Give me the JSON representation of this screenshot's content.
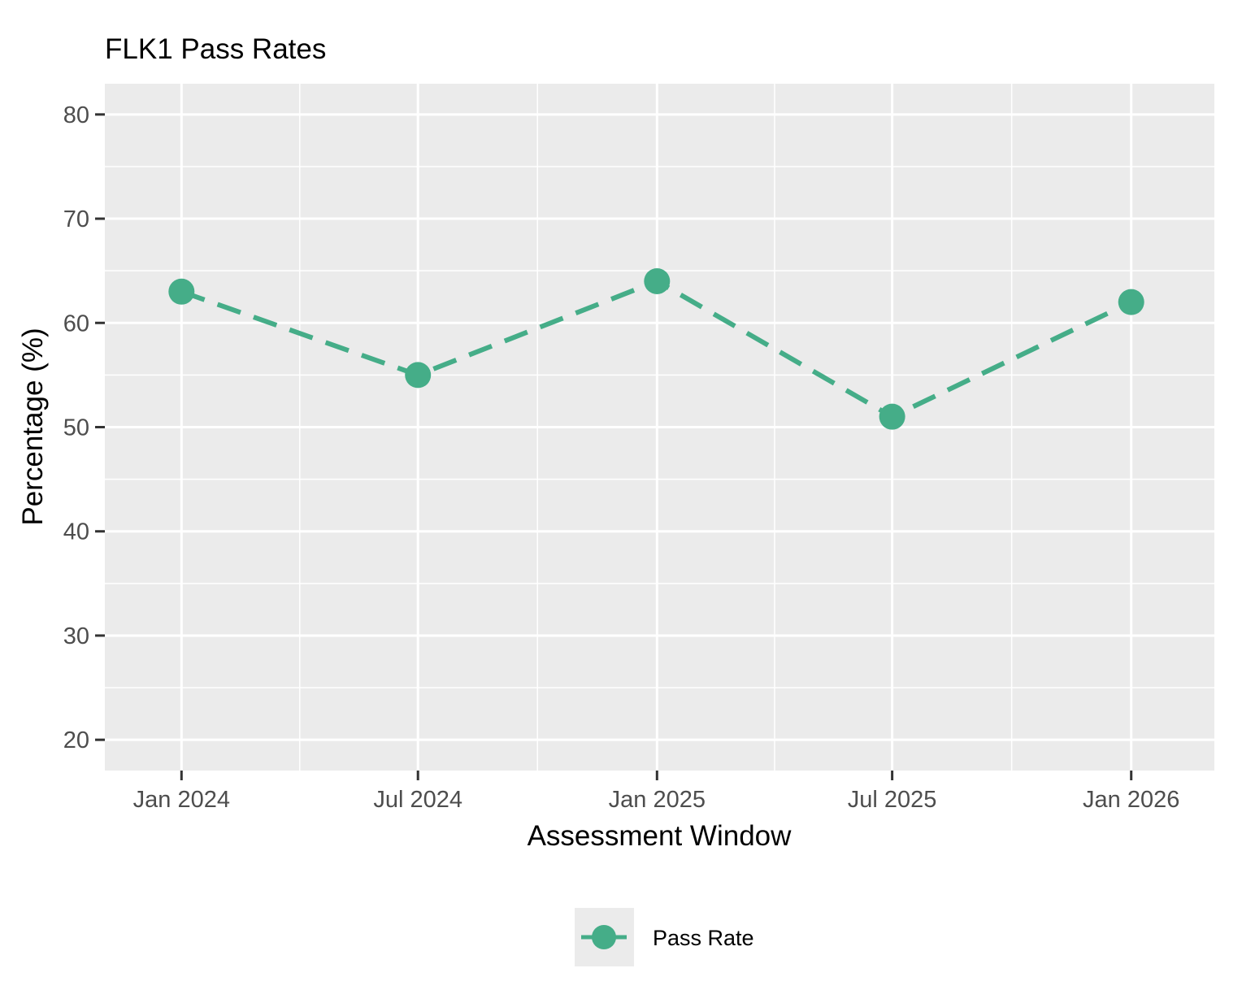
{
  "chart_data": {
    "type": "line",
    "title": "FLK1 Pass Rates",
    "xlabel": "Assessment Window",
    "ylabel": "Percentage (%)",
    "x": [
      "2024-01-01",
      "2024-07-01",
      "2025-01-01",
      "2025-07-01",
      "2026-01-01"
    ],
    "series": [
      {
        "name": "Pass Rate",
        "values": [
          63,
          55,
          64,
          51,
          62
        ],
        "color": "#45AD88",
        "line_style": "dashed",
        "marker": "circle"
      }
    ],
    "x_ticks": [
      {
        "date": "2024-01-01",
        "label": "Jan 2024"
      },
      {
        "date": "2024-07-01",
        "label": "Jul 2024"
      },
      {
        "date": "2025-01-01",
        "label": "Jan 2025"
      },
      {
        "date": "2025-07-01",
        "label": "Jul 2025"
      },
      {
        "date": "2026-01-01",
        "label": "Jan 2026"
      }
    ],
    "y_ticks": [
      "20",
      "30",
      "40",
      "50",
      "60",
      "70",
      "80"
    ],
    "ylim": [
      17.05,
      82.95
    ],
    "xlim": [
      "2023-11-03",
      "2026-03-06"
    ],
    "grid": true,
    "panel_background": "#EBEBEB",
    "legend_position": "bottom"
  }
}
